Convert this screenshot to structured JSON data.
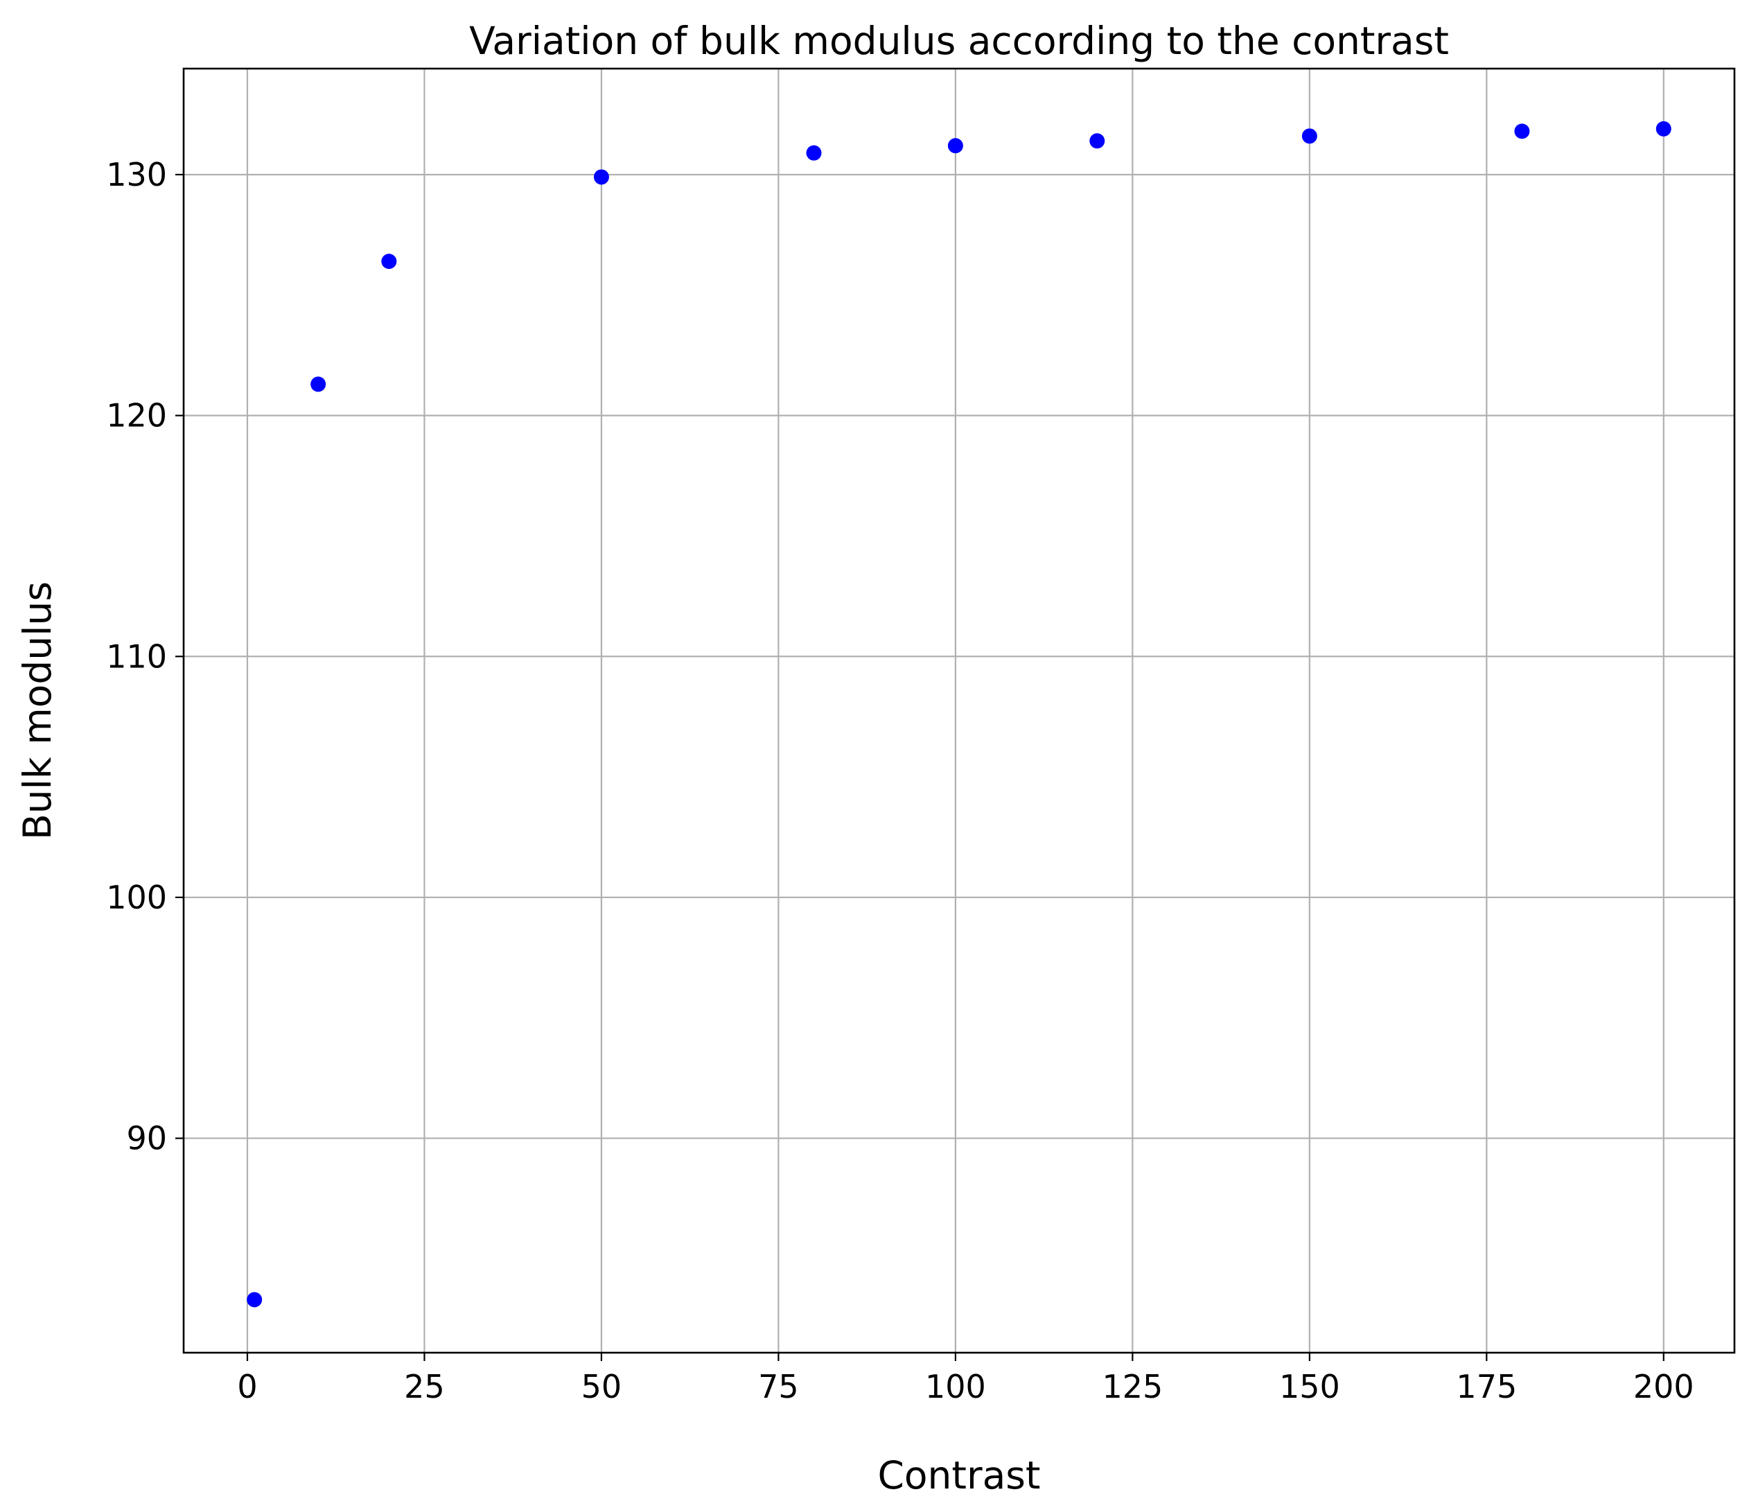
{
  "chart_data": {
    "type": "scatter",
    "title": "Variation of bulk modulus according to the contrast",
    "xlabel": "Contrast",
    "ylabel": "Bulk modulus",
    "xlim": [
      -9,
      210
    ],
    "ylim": [
      81.1,
      134.4
    ],
    "xticks": [
      0,
      25,
      50,
      75,
      100,
      125,
      150,
      175,
      200
    ],
    "yticks": [
      90,
      100,
      110,
      120,
      130
    ],
    "grid": true,
    "legend": null,
    "marker_color": "#0000ff",
    "series": [
      {
        "x": [
          1,
          10,
          20,
          50,
          80,
          100,
          120,
          150,
          180,
          200
        ],
        "y": [
          83.3,
          121.3,
          126.4,
          129.9,
          130.9,
          131.2,
          131.4,
          131.6,
          131.8,
          131.9
        ]
      }
    ]
  }
}
